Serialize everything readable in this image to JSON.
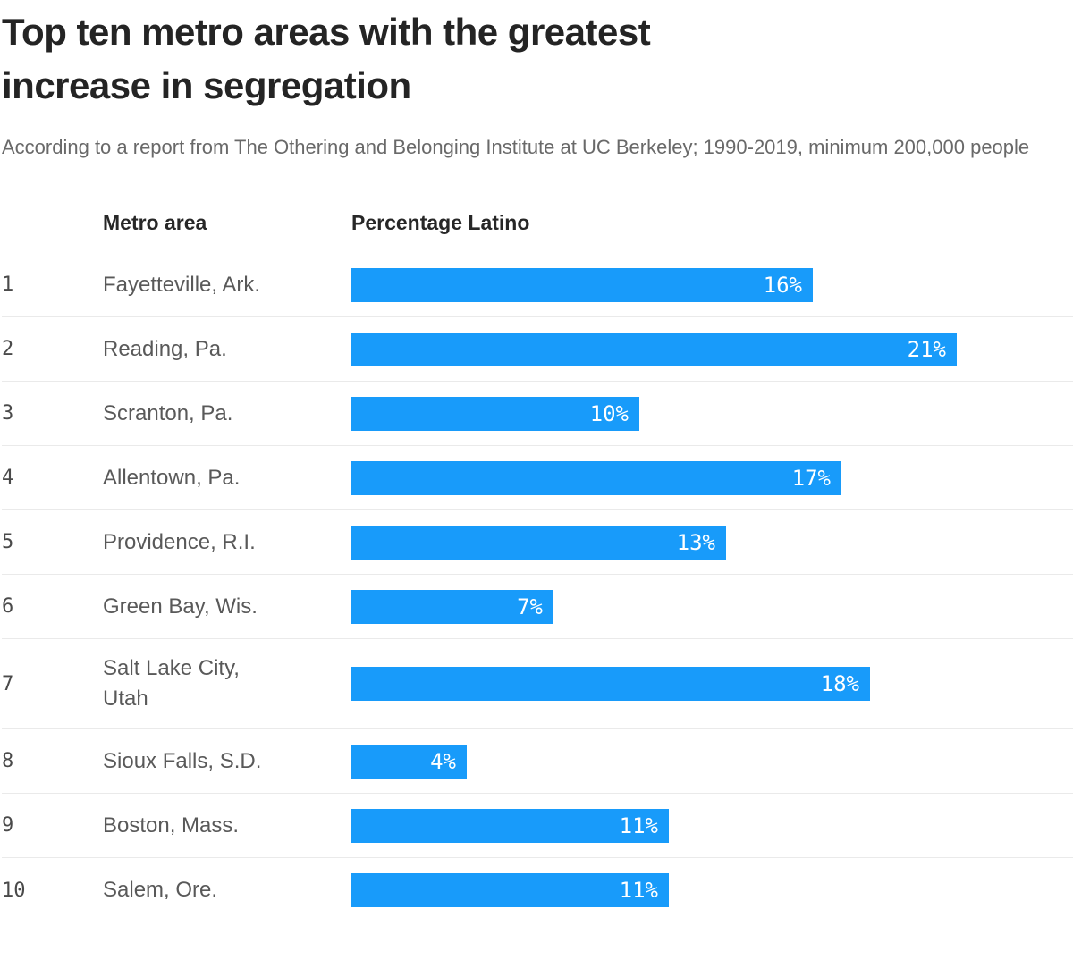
{
  "chart_data": {
    "type": "bar",
    "orientation": "horizontal",
    "title": "Top ten metro areas with the greatest increase in segregation",
    "subtitle": "According to a report from The Othering and Belonging Institute at UC Berkeley; 1990-2019, minimum 200,000 people",
    "columns": [
      "Metro area",
      "Percentage Latino"
    ],
    "unit": "%",
    "xlim": [
      0,
      21
    ],
    "grid": "off",
    "legend": "none",
    "value_label_position": "inside-right",
    "categories": [
      "Fayetteville, Ark.",
      "Reading, Pa.",
      "Scranton, Pa.",
      "Allentown, Pa.",
      "Providence, R.I.",
      "Green Bay, Wis.",
      "Salt Lake City, Utah",
      "Sioux Falls, S.D.",
      "Boston, Mass.",
      "Salem, Ore."
    ],
    "values": [
      16,
      21,
      10,
      17,
      13,
      7,
      18,
      4,
      11,
      11
    ],
    "rows": [
      {
        "rank": "1",
        "metro": "Fayetteville, Ark.",
        "value": 16,
        "value_label": "16%"
      },
      {
        "rank": "2",
        "metro": "Reading, Pa.",
        "value": 21,
        "value_label": "21%"
      },
      {
        "rank": "3",
        "metro": "Scranton, Pa.",
        "value": 10,
        "value_label": "10%"
      },
      {
        "rank": "4",
        "metro": "Allentown, Pa.",
        "value": 17,
        "value_label": "17%"
      },
      {
        "rank": "5",
        "metro": "Providence, R.I.",
        "value": 13,
        "value_label": "13%"
      },
      {
        "rank": "6",
        "metro": "Green Bay, Wis.",
        "value": 7,
        "value_label": "7%"
      },
      {
        "rank": "7",
        "metro": "Salt Lake City,\nUtah",
        "value": 18,
        "value_label": "18%"
      },
      {
        "rank": "8",
        "metro": "Sioux Falls, S.D.",
        "value": 4,
        "value_label": "4%"
      },
      {
        "rank": "9",
        "metro": "Boston, Mass.",
        "value": 11,
        "value_label": "11%"
      },
      {
        "rank": "10",
        "metro": "Salem, Ore.",
        "value": 11,
        "value_label": "11%"
      }
    ],
    "colors": {
      "bar": "#189bfa",
      "title_text": "#242424",
      "subtitle_text": "#696969",
      "row_divider": "#eaeaea",
      "bar_value_text": "#ffffff"
    }
  }
}
